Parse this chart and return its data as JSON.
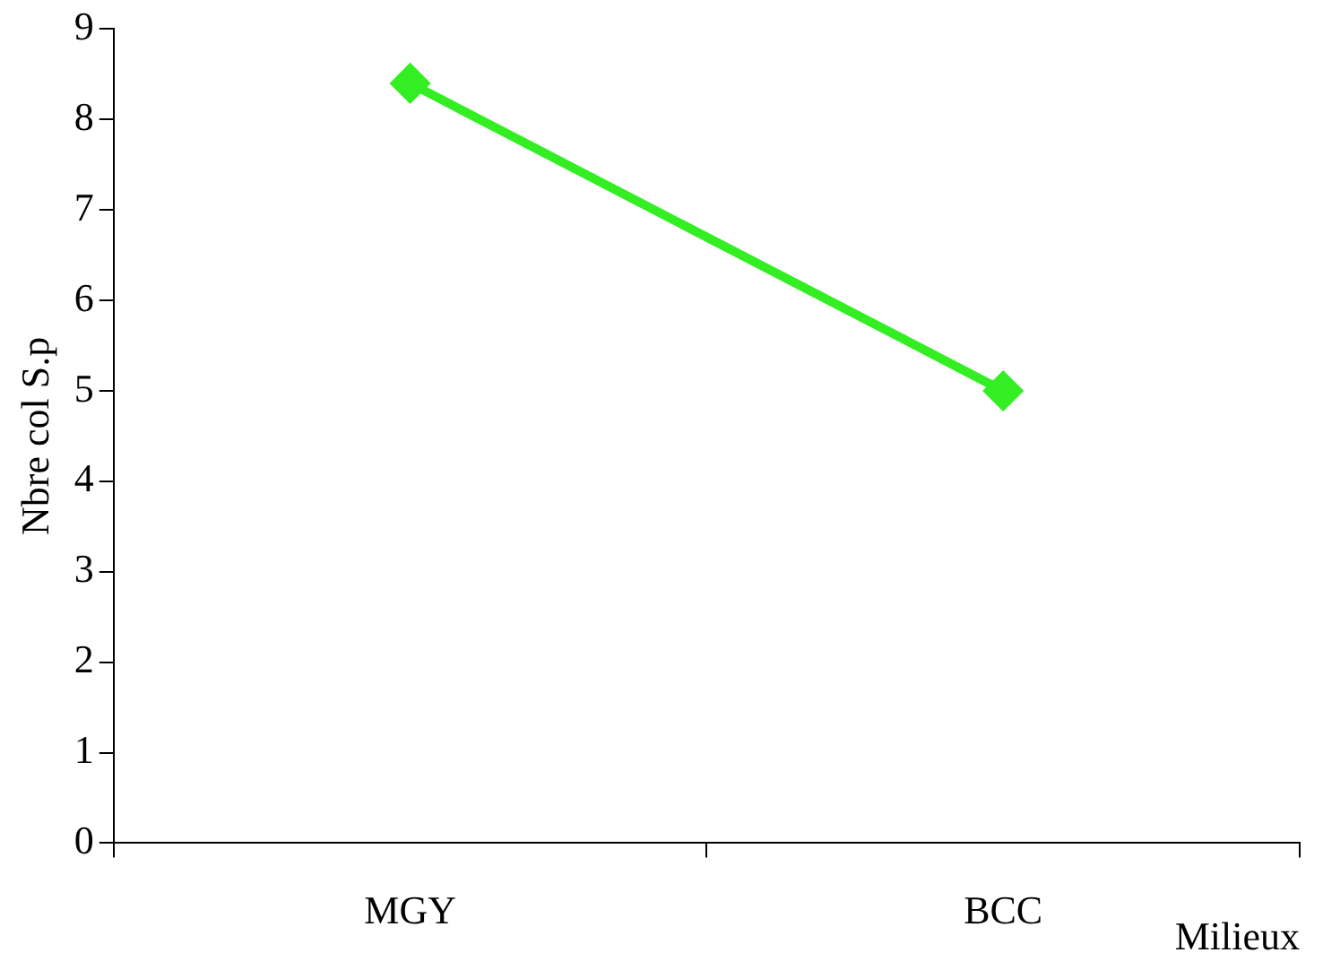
{
  "chart_data": {
    "type": "line",
    "ylabel": "Nbre col S.p",
    "xlabel": "Milieux",
    "categories": [
      "MGY",
      "BCC"
    ],
    "series": [
      {
        "color": "#33ee22",
        "values": [
          8.4,
          5.0
        ]
      }
    ],
    "ylim": [
      0,
      9
    ],
    "yticks": [
      0,
      1,
      2,
      3,
      4,
      5,
      6,
      7,
      8,
      9
    ],
    "grid": false,
    "legend": false,
    "marker": "diamond",
    "line_style": "solid"
  }
}
